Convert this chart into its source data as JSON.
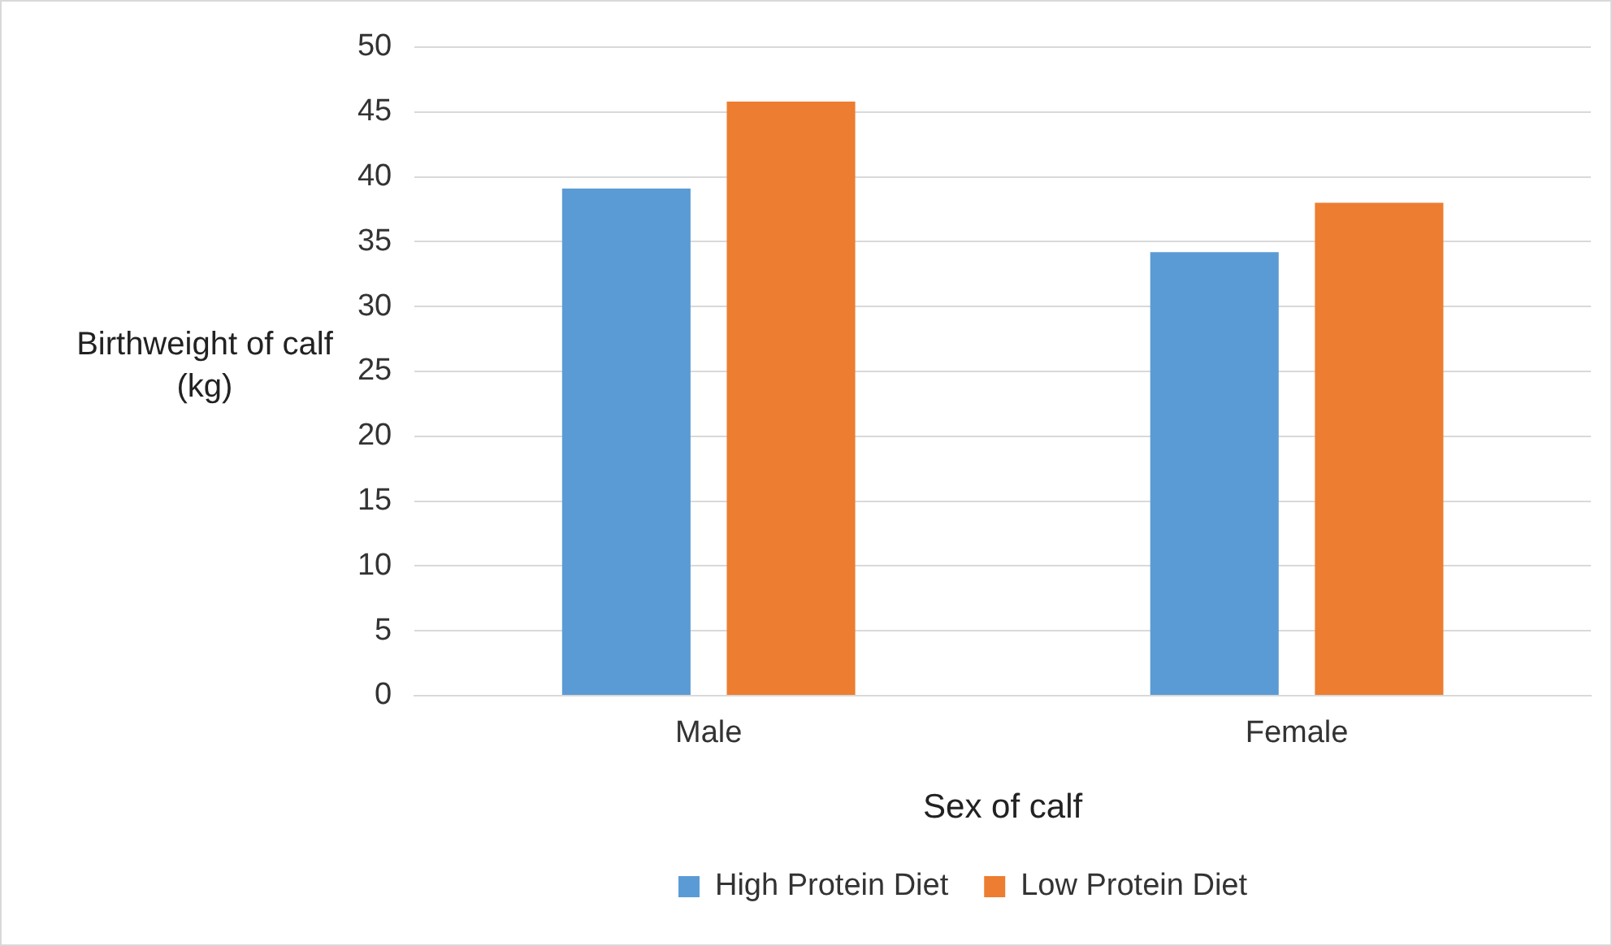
{
  "chart_data": {
    "type": "bar",
    "xlabel": "Sex of calf",
    "ylabel": "Birthweight of calf (kg)",
    "categories": [
      "Male",
      "Female"
    ],
    "series": [
      {
        "name": "High Protein Diet",
        "color": "#5b9bd5",
        "values": [
          39.1,
          34.2
        ]
      },
      {
        "name": "Low Protein Diet",
        "color": "#ed7d31",
        "values": [
          45.8,
          38.0
        ]
      }
    ],
    "ylim": [
      0,
      50
    ],
    "yticks": [
      0,
      5,
      10,
      15,
      20,
      25,
      30,
      35,
      40,
      45,
      50
    ],
    "grid": "y",
    "legend": "bottom"
  }
}
